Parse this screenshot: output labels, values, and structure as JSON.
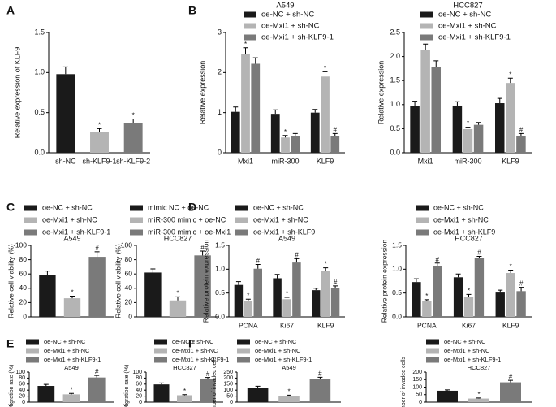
{
  "chart_data": [
    {
      "type": "bar",
      "panel": "A",
      "ylabel": "Relative expression of KLF9",
      "categories": [
        "sh-NC",
        "sh-KLF9-1",
        "sh-KLF9-2"
      ],
      "values": [
        0.98,
        0.26,
        0.37
      ],
      "errors": [
        0.09,
        0.04,
        0.05
      ],
      "markers": [
        null,
        "*",
        "*"
      ],
      "colors": [
        "#1a1a1a",
        "#b4b4b4",
        "#7a7a7a"
      ],
      "ylim": [
        0,
        1.5
      ],
      "yticks": [
        {
          "value": 0,
          "label": "0.0"
        },
        {
          "value": 0.5,
          "label": "0.5"
        },
        {
          "value": 1,
          "label": "1.0"
        },
        {
          "value": 1.5,
          "label": "1.5"
        }
      ]
    },
    {
      "type": "grouped_bar",
      "panel": "B",
      "title": "A549",
      "ylabel": "Relative expression",
      "categories": [
        "Mxi1",
        "miR-300",
        "KLF9"
      ],
      "ylim": [
        0,
        3
      ],
      "yticks": [
        0,
        1,
        2,
        3
      ],
      "series": [
        {
          "name": "oe-NC + sh-NC",
          "color": "#1a1a1a",
          "values": [
            1.02,
            0.97,
            1.0
          ],
          "errors": [
            0.12,
            0.1,
            0.08
          ],
          "markers": [
            null,
            null,
            null
          ]
        },
        {
          "name": "oe-Mxi1 + sh-NC",
          "color": "#b4b4b4",
          "values": [
            2.47,
            0.38,
            1.9
          ],
          "errors": [
            0.15,
            0.05,
            0.12
          ],
          "markers": [
            "*",
            "*",
            "*"
          ]
        },
        {
          "name": "oe-Mxi1 + sh-KLF9-1",
          "color": "#7a7a7a",
          "values": [
            2.22,
            0.42,
            0.42
          ],
          "errors": [
            0.15,
            0.06,
            0.06
          ],
          "markers": [
            null,
            null,
            "#"
          ]
        }
      ]
    },
    {
      "type": "grouped_bar",
      "title": "HCC827",
      "ylabel": "Relative expression",
      "categories": [
        "Mxi1",
        "miR-300",
        "KLF9"
      ],
      "ylim": [
        0,
        2.5
      ],
      "yticks": [
        {
          "value": 0,
          "label": "0.0"
        },
        {
          "value": 0.5,
          "label": "0.5"
        },
        {
          "value": 1,
          "label": "1.0"
        },
        {
          "value": 1.5,
          "label": "1.5"
        },
        {
          "value": 2,
          "label": "2.0"
        },
        {
          "value": 2.5,
          "label": "2.5"
        }
      ],
      "series": [
        {
          "name": "oe-NC + sh-NC",
          "color": "#1a1a1a",
          "values": [
            0.97,
            0.98,
            1.03
          ],
          "errors": [
            0.1,
            0.08,
            0.1
          ],
          "markers": [
            null,
            null,
            null
          ]
        },
        {
          "name": "oe-Mxi1 + sh-NC",
          "color": "#b4b4b4",
          "values": [
            2.13,
            0.49,
            1.45
          ],
          "errors": [
            0.13,
            0.04,
            0.1
          ],
          "markers": [
            "*",
            "*",
            "*"
          ]
        },
        {
          "name": "oe-Mxi1 + sh-KLF9-1",
          "color": "#7a7a7a",
          "values": [
            1.78,
            0.58,
            0.35
          ],
          "errors": [
            0.13,
            0.05,
            0.05
          ],
          "markers": [
            null,
            null,
            "#"
          ]
        }
      ]
    },
    {
      "type": "grouped_bar",
      "panel": "C",
      "title": "A549",
      "ylabel": "Relative cell viability (%)",
      "ylim": [
        0,
        100
      ],
      "yticks": [
        0,
        20,
        40,
        60,
        80,
        100
      ],
      "series": [
        {
          "name": "oe-NC + sh-NC",
          "color": "#1a1a1a",
          "values": [
            58
          ],
          "errors": [
            6
          ],
          "markers": [
            null
          ]
        },
        {
          "name": "oe-Mxi1 + sh-NC",
          "color": "#b4b4b4",
          "values": [
            26
          ],
          "errors": [
            3
          ],
          "markers": [
            "*"
          ]
        },
        {
          "name": "oe-Mxi1 + sh-KLF9-1",
          "color": "#7a7a7a",
          "values": [
            84
          ],
          "errors": [
            7
          ],
          "markers": [
            "#"
          ]
        }
      ]
    },
    {
      "type": "grouped_bar",
      "title": "HCC827",
      "ylabel": "Relative cell viability (%)",
      "ylim": [
        0,
        100
      ],
      "yticks": [
        0,
        20,
        40,
        60,
        80,
        100
      ],
      "series": [
        {
          "name": "mimic NC + oe-NC",
          "color": "#1a1a1a",
          "values": [
            62
          ],
          "errors": [
            5
          ],
          "markers": [
            null
          ]
        },
        {
          "name": "miR-300 mimic + oe-NC",
          "color": "#b4b4b4",
          "values": [
            23
          ],
          "errors": [
            5
          ],
          "markers": [
            "*"
          ]
        },
        {
          "name": "miR-300 mimic + oe-Mxi1",
          "color": "#7a7a7a",
          "values": [
            86
          ],
          "errors": [
            6
          ],
          "markers": [
            "#"
          ]
        }
      ]
    },
    {
      "type": "grouped_bar",
      "panel": "D",
      "title": "A549",
      "ylabel": "Relative protein expression",
      "categories": [
        "PCNA",
        "Ki67",
        "KLF9"
      ],
      "ylim": [
        0,
        1.5
      ],
      "yticks": [
        {
          "value": 0,
          "label": "0.0"
        },
        {
          "value": 0.5,
          "label": "0.5"
        },
        {
          "value": 1,
          "label": "1.0"
        },
        {
          "value": 1.5,
          "label": "1.5"
        }
      ],
      "series": [
        {
          "name": "oe-NC + sh-NC",
          "color": "#1a1a1a",
          "values": [
            0.67,
            0.81,
            0.56
          ],
          "errors": [
            0.07,
            0.08,
            0.04
          ],
          "markers": [
            null,
            null,
            null
          ]
        },
        {
          "name": "oe-Mxi1 + sh-NC",
          "color": "#b4b4b4",
          "values": [
            0.33,
            0.37,
            0.97
          ],
          "errors": [
            0.04,
            0.04,
            0.06
          ],
          "markers": [
            "*",
            "*",
            "*"
          ]
        },
        {
          "name": "oe-Mxi1 + sh-KLF9",
          "color": "#7a7a7a",
          "values": [
            1.01,
            1.14,
            0.6
          ],
          "errors": [
            0.09,
            0.08,
            0.05
          ],
          "markers": [
            "#",
            "#",
            "#"
          ]
        }
      ]
    },
    {
      "type": "grouped_bar",
      "title": "HCC827",
      "ylabel": "Relative protein expression",
      "categories": [
        "PCNA",
        "Ki67",
        "KLF9"
      ],
      "ylim": [
        0,
        1.5
      ],
      "yticks": [
        {
          "value": 0,
          "label": "0.0"
        },
        {
          "value": 0.5,
          "label": "0.5"
        },
        {
          "value": 1,
          "label": "1.0"
        },
        {
          "value": 1.5,
          "label": "1.5"
        }
      ],
      "series": [
        {
          "name": "oe-NC + sh-NC",
          "color": "#1a1a1a",
          "values": [
            0.73,
            0.83,
            0.51
          ],
          "errors": [
            0.07,
            0.07,
            0.05
          ],
          "markers": [
            null,
            null,
            null
          ]
        },
        {
          "name": "oe-Mxi1 + sh-NC",
          "color": "#b4b4b4",
          "values": [
            0.33,
            0.42,
            0.92
          ],
          "errors": [
            0.03,
            0.05,
            0.06
          ],
          "markers": [
            "*",
            "*",
            "*"
          ]
        },
        {
          "name": "oe-Mxi1 + sh-KLF9",
          "color": "#7a7a7a",
          "values": [
            1.07,
            1.23,
            0.54
          ],
          "errors": [
            0.06,
            0.04,
            0.08
          ],
          "markers": [
            "#",
            "#",
            "#"
          ]
        }
      ]
    },
    {
      "type": "grouped_bar",
      "panel": "E",
      "title": "A549",
      "ylabel": "Migration rate (%)",
      "ylim": [
        0,
        100
      ],
      "yticks": [
        0,
        20,
        40,
        60,
        80,
        100
      ],
      "series": [
        {
          "name": "oe-NC + sh-NC",
          "color": "#1a1a1a",
          "values": [
            54
          ],
          "errors": [
            5
          ],
          "markers": [
            null
          ]
        },
        {
          "name": "oe-Mxi1 + sh-NC",
          "color": "#b4b4b4",
          "values": [
            26
          ],
          "errors": [
            3
          ],
          "markers": [
            "*"
          ]
        },
        {
          "name": "oe-Mxi1 + sh-KLF9-1",
          "color": "#7a7a7a",
          "values": [
            82
          ],
          "errors": [
            7
          ],
          "markers": [
            "#"
          ]
        }
      ]
    },
    {
      "type": "grouped_bar",
      "title": "HCC827",
      "ylabel": "Migration rate (%)",
      "ylim": [
        0,
        100
      ],
      "yticks": [
        0,
        20,
        40,
        60,
        80,
        100
      ],
      "series": [
        {
          "name": "oe-NC + sh-NC",
          "color": "#1a1a1a",
          "values": [
            59
          ],
          "errors": [
            5
          ],
          "markers": [
            null
          ]
        },
        {
          "name": "oe-Mxi1 + sh-NC",
          "color": "#b4b4b4",
          "values": [
            23
          ],
          "errors": [
            2
          ],
          "markers": [
            "*"
          ]
        },
        {
          "name": "oe-Mxi1 + sh-KLF9-1",
          "color": "#7a7a7a",
          "values": [
            77
          ],
          "errors": [
            5
          ],
          "markers": [
            "#"
          ]
        }
      ]
    },
    {
      "type": "grouped_bar",
      "panel": "F",
      "title": "A549",
      "ylabel": "Number of invaded cells",
      "ylim": [
        0,
        250
      ],
      "yticks": [
        0,
        50,
        100,
        150,
        200,
        250
      ],
      "series": [
        {
          "name": "oe-NC + sh-NC",
          "color": "#1a1a1a",
          "values": [
            121
          ],
          "errors": [
            12
          ],
          "markers": [
            null
          ]
        },
        {
          "name": "oe-Mxi1 + sh-NC",
          "color": "#b4b4b4",
          "values": [
            52
          ],
          "errors": [
            6
          ],
          "markers": [
            "*"
          ]
        },
        {
          "name": "oe-Mxi1 + sh-KLF9-1",
          "color": "#7a7a7a",
          "values": [
            193
          ],
          "errors": [
            14
          ],
          "markers": [
            "#"
          ]
        }
      ]
    },
    {
      "type": "grouped_bar",
      "title": "HCC827",
      "ylabel": "Number of invaded cells",
      "ylim": [
        0,
        200
      ],
      "yticks": [
        0,
        50,
        100,
        150,
        200
      ],
      "series": [
        {
          "name": "oe-NC + sh-NC",
          "color": "#1a1a1a",
          "values": [
            76
          ],
          "errors": [
            6
          ],
          "markers": [
            null
          ]
        },
        {
          "name": "oe-Mxi1 + sh-NC",
          "color": "#b4b4b4",
          "values": [
            24
          ],
          "errors": [
            4
          ],
          "markers": [
            "*"
          ]
        },
        {
          "name": "oe-Mxi1 + sh-KLF9-1",
          "color": "#7a7a7a",
          "values": [
            132
          ],
          "errors": [
            13
          ],
          "markers": [
            "#"
          ]
        }
      ]
    }
  ]
}
